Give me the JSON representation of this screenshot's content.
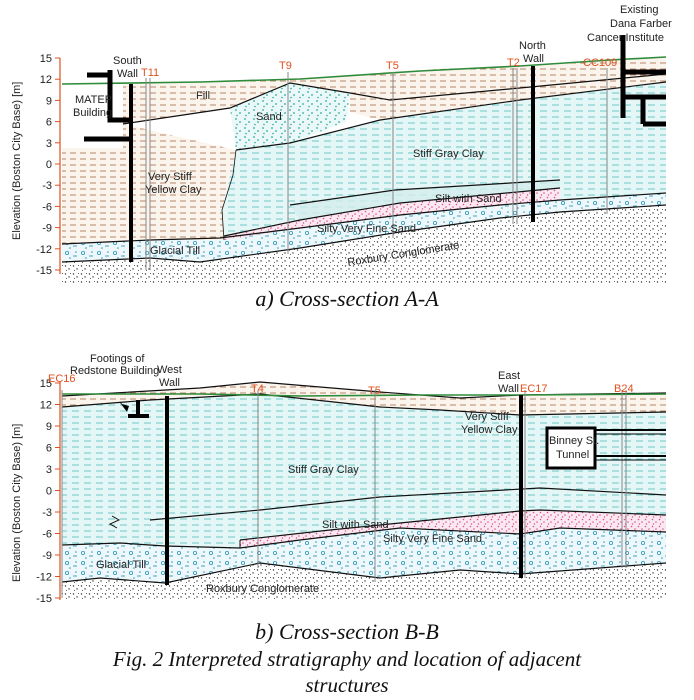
{
  "section_a": {
    "caption": "a) Cross-section A-A",
    "y_axis_label": "Elevation (Boston City Base) [m]",
    "y_ticks": [
      "15",
      "12",
      "9",
      "6",
      "3",
      "0",
      "-3",
      "-6",
      "-9",
      "-12",
      "-15"
    ],
    "borings": [
      "T11",
      "T9",
      "T5",
      "T2",
      "CC109"
    ],
    "wall_labels": [
      {
        "line1": "South",
        "line2": "Wall"
      },
      {
        "line1": "North",
        "line2": "Wall"
      }
    ],
    "building_left": {
      "line1": "MATEP",
      "line2": "Building"
    },
    "building_right": {
      "line1": "Existing",
      "line2": "Dana Farber",
      "line3": "Cancer Institute"
    },
    "layers": {
      "fill": "Fill",
      "sand": "Sand",
      "yellow_clay_1": "Very Stiff",
      "yellow_clay_2": "Yellow Clay",
      "gray_clay": "Stiff Gray Clay",
      "silt_sand": "Silt with Sand",
      "silty_fine_sand": "Silty Very Fine Sand",
      "glacial_till": "Glacial Till",
      "conglomerate": "Roxbury Conglomerate"
    }
  },
  "section_b": {
    "caption": "b) Cross-section B-B",
    "y_axis_label": "Elevation (Boston City Base) [m]",
    "y_ticks": [
      "15",
      "12",
      "9",
      "6",
      "3",
      "0",
      "-3",
      "-6",
      "-9",
      "-12",
      "-15"
    ],
    "borings": [
      "EC16",
      "T4",
      "T5",
      "EC17",
      "B24"
    ],
    "footing_label": {
      "line1": "Footings of",
      "line2": "Redstone Building"
    },
    "wall_labels": [
      {
        "line1": "West",
        "line2": "Wall"
      },
      {
        "line1": "East",
        "line2": "Wall"
      }
    ],
    "tunnel": {
      "line1": "Binney St.",
      "line2": "Tunnel"
    },
    "layers": {
      "yellow_clay_1": "Very Stiff",
      "yellow_clay_2": "Yellow Clay",
      "gray_clay": "Stiff Gray Clay",
      "silt_sand": "Silt with Sand",
      "silty_fine_sand": "Silty Very Fine Sand",
      "glacial_till": "Glacial Till",
      "conglomerate": "Roxbury Conglomerate"
    }
  },
  "figure_caption_line1": "Fig. 2 Interpreted stratigraphy and location of adjacent",
  "figure_caption_line2": "structures",
  "colors": {
    "ground_line": "#2e8b3a",
    "boring_label": "#e0501e",
    "clay_brown": "#c8a080",
    "gray_clay": "#9fd6d6",
    "sand_teal": "#3fb6b0",
    "silty_sand_pink": "#e6669a",
    "till": "#3aa6c8"
  }
}
